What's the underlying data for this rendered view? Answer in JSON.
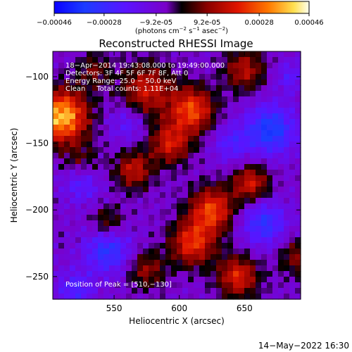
{
  "chart_data": {
    "type": "heatmap",
    "title": "Reconstructed RHESSI Image",
    "xlabel": "Heliocentric X (arcsec)",
    "ylabel": "Heliocentric Y (arcsec)",
    "xlim": [
      503,
      693
    ],
    "ylim": [
      -267,
      -81
    ],
    "x_ticks": [
      550,
      600,
      650
    ],
    "x_tick_labels": [
      "550",
      "600",
      "650"
    ],
    "y_ticks": [
      -100,
      -150,
      -200,
      -250
    ],
    "y_tick_labels": [
      "−100",
      "−150",
      "−200",
      "−250"
    ],
    "colorbar": {
      "range": [
        -0.00046,
        0.00046
      ],
      "ticks": [
        -0.00046,
        -0.00028,
        -9.2e-05,
        9.2e-05,
        0.00028,
        0.00046
      ],
      "tick_labels": [
        "−0.00046",
        "−0.00028",
        "−9.2e-05",
        "9.2e-05",
        "0.00028",
        "0.00046"
      ],
      "units_parts": [
        "(photons cm",
        "−2",
        " s",
        "−1",
        " asec",
        "−2",
        ")"
      ],
      "position": "top"
    },
    "annotations": [
      "18−Apr−2014 19:43:08.000 to 19:49:00.000",
      "Detectors: 3F 4F 5F 6F 7F 8F, Att 0",
      "Energy Range: 25.0 − 50.0 keV",
      "Clean     Total counts: 1.11E+04",
      "Position of Peak = [510,−130]"
    ],
    "peak_position": [
      510,
      -130
    ],
    "sources": [
      {
        "x": 510,
        "y": -130,
        "peak": 0.00046,
        "sigma": 14
      },
      {
        "x": 575,
        "y": -110,
        "peak": 0.00025,
        "sigma": 14
      },
      {
        "x": 610,
        "y": -125,
        "peak": 0.00033,
        "sigma": 12
      },
      {
        "x": 650,
        "y": -95,
        "peak": 0.00022,
        "sigma": 11
      },
      {
        "x": 593,
        "y": -150,
        "peak": 0.00026,
        "sigma": 11
      },
      {
        "x": 565,
        "y": -170,
        "peak": 0.00024,
        "sigma": 10
      },
      {
        "x": 545,
        "y": -210,
        "peak": 0.00016,
        "sigma": 9
      },
      {
        "x": 625,
        "y": -200,
        "peak": 0.00032,
        "sigma": 12
      },
      {
        "x": 655,
        "y": -180,
        "peak": 0.00026,
        "sigma": 10
      },
      {
        "x": 610,
        "y": -225,
        "peak": 0.0003,
        "sigma": 12
      },
      {
        "x": 645,
        "y": -250,
        "peak": 0.00028,
        "sigma": 11
      },
      {
        "x": 575,
        "y": -245,
        "peak": 0.00018,
        "sigma": 10
      },
      {
        "x": 690,
        "y": -235,
        "peak": 0.00016,
        "sigma": 10
      },
      {
        "x": 525,
        "y": -165,
        "peak": 0.00012,
        "sigma": 10
      },
      {
        "x": 535,
        "y": -95,
        "peak": 0.00014,
        "sigma": 9
      }
    ],
    "minima": [
      {
        "x": 670,
        "y": -140,
        "peak": -0.00028,
        "sigma": 13
      },
      {
        "x": 545,
        "y": -230,
        "peak": -0.00024,
        "sigma": 12
      },
      {
        "x": 525,
        "y": -180,
        "peak": -0.00016,
        "sigma": 10
      },
      {
        "x": 665,
        "y": -210,
        "peak": -0.00022,
        "sigma": 12
      },
      {
        "x": 640,
        "y": -150,
        "peak": -0.00014,
        "sigma": 10
      },
      {
        "x": 560,
        "y": -135,
        "peak": -0.00012,
        "sigma": 10
      },
      {
        "x": 520,
        "y": -260,
        "peak": -0.00016,
        "sigma": 10
      },
      {
        "x": 685,
        "y": -100,
        "peak": -0.00012,
        "sigma": 8
      }
    ]
  },
  "footer": {
    "timestamp": "14−May−2022 16:30"
  }
}
